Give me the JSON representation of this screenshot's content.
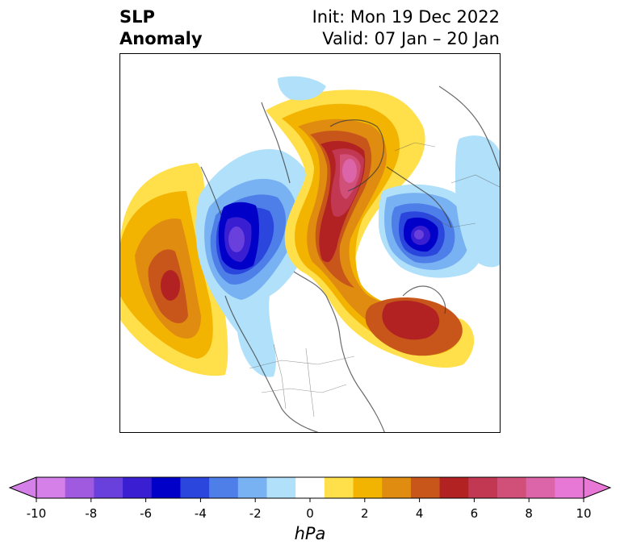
{
  "title": {
    "left_line1": "SLP",
    "left_line2": "Anomaly",
    "right_line1": "Init: Mon 19 Dec 2022",
    "right_line2": "Valid: 07 Jan – 20 Jan"
  },
  "map": {
    "projection": "north-polar-stereographic",
    "field": "sea level pressure anomaly",
    "features": [
      {
        "name": "positive-anomaly-ne-pacific",
        "sign": "positive",
        "peak_hpa": 6
      },
      {
        "name": "negative-anomaly-alaska-canada",
        "sign": "negative",
        "peak_hpa": -8
      },
      {
        "name": "positive-anomaly-arctic-greenland",
        "sign": "positive",
        "peak_hpa": 10
      },
      {
        "name": "negative-anomaly-scandinavia-europe",
        "sign": "negative",
        "peak_hpa": -8
      },
      {
        "name": "positive-anomaly-north-atlantic",
        "sign": "positive",
        "peak_hpa": 6
      },
      {
        "name": "negative-anomaly-siberia-east",
        "sign": "negative",
        "peak_hpa": -2
      }
    ]
  },
  "colorbar": {
    "unit": "hPa",
    "ticks": [
      "-10",
      "-8",
      "-6",
      "-4",
      "-2",
      "0",
      "2",
      "4",
      "6",
      "8",
      "10"
    ],
    "levels": [
      -10,
      -9,
      -8,
      -7,
      -6,
      -5,
      -4,
      -3,
      -2,
      -1,
      1,
      2,
      3,
      4,
      5,
      6,
      7,
      8,
      9,
      10
    ],
    "colors": [
      "#d580e8",
      "#a05ae0",
      "#6a40dc",
      "#3a1ed2",
      "#0000c8",
      "#2a46dc",
      "#4e7ee8",
      "#78b2f2",
      "#b0e0fa",
      "#ffffff",
      "#ffe04a",
      "#f2b400",
      "#e08c10",
      "#c8561a",
      "#b22222",
      "#c23852",
      "#d0507a",
      "#dc64a8",
      "#e878d6"
    ],
    "extend_low_color": "#d580e8",
    "extend_high_color": "#e878d6"
  }
}
